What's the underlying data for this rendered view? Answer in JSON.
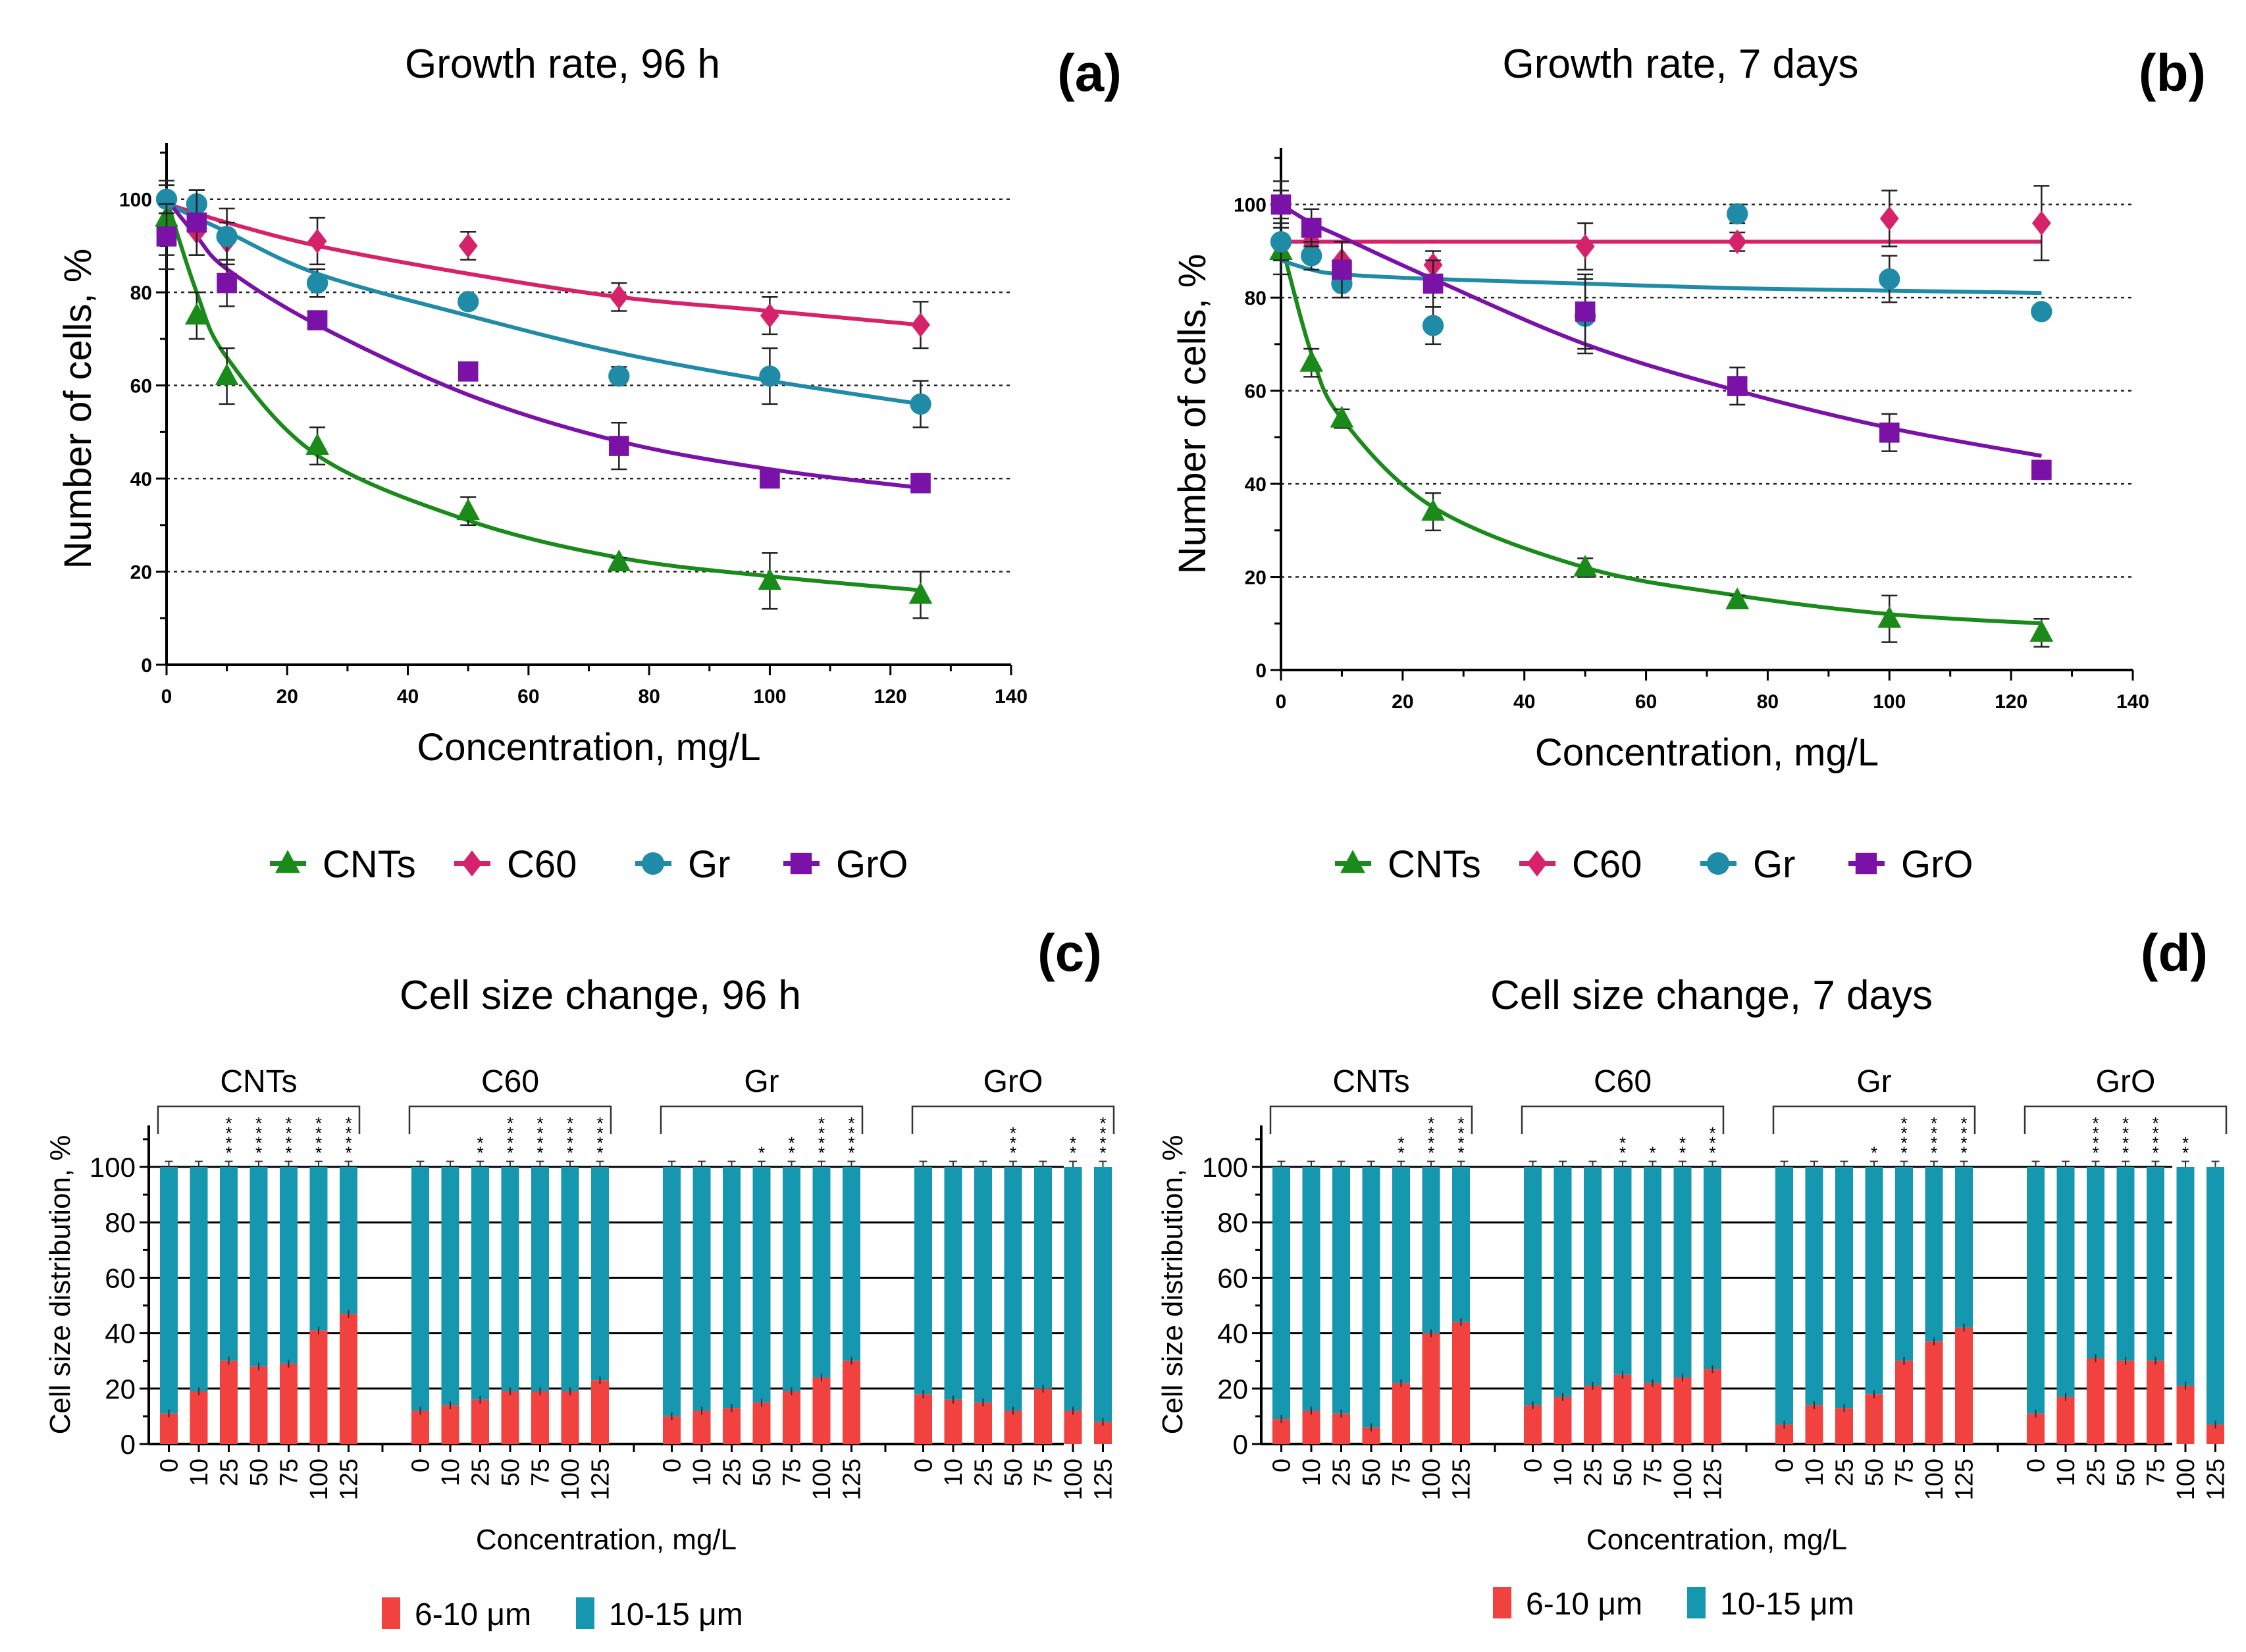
{
  "figure": {
    "panels": [
      "(a)",
      "(b)",
      "(c)",
      "(d)"
    ]
  },
  "colors": {
    "CNTs": "#1a8a1a",
    "C60": "#d6226b",
    "Gr": "#1f8ba6",
    "GrO": "#7a12a8",
    "small": "#f2423f",
    "large": "#1597b0"
  },
  "line_legend": [
    {
      "name": "CNTs",
      "marker": "triangle"
    },
    {
      "name": "C60",
      "marker": "diamond"
    },
    {
      "name": "Gr",
      "marker": "circle"
    },
    {
      "name": "GrO",
      "marker": "square"
    }
  ],
  "bar_legend": [
    {
      "name": "6-10 μm",
      "key": "small"
    },
    {
      "name": "10-15 μm",
      "key": "large"
    }
  ],
  "chart_data": [
    {
      "id": "a",
      "type": "scatter",
      "title": "Growth rate, 96 h",
      "panel_label": "(a)",
      "xlabel": "Concentration, mg/L",
      "ylabel": "Number of cells, %",
      "xlim": [
        0,
        140
      ],
      "ylim": [
        0,
        110
      ],
      "xticks": [
        0,
        20,
        40,
        60,
        80,
        100,
        120,
        140
      ],
      "yticks": [
        0,
        20,
        40,
        60,
        80,
        100
      ],
      "grid_y": [
        20,
        40,
        60,
        80,
        100
      ],
      "x": [
        0,
        5,
        10,
        25,
        50,
        75,
        100,
        125
      ],
      "series": [
        {
          "name": "CNTs",
          "values": [
            96,
            75,
            62,
            47,
            33,
            22,
            18,
            15
          ],
          "errors": [
            8,
            5,
            6,
            4,
            3,
            1,
            6,
            5
          ],
          "fit": [
            100,
            80,
            66,
            45,
            31,
            23,
            19,
            16
          ]
        },
        {
          "name": "C60",
          "values": [
            100,
            93,
            91,
            91,
            90,
            79,
            75,
            73
          ],
          "errors": [
            3,
            5,
            4,
            5,
            3,
            3,
            4,
            5
          ],
          "fit": [
            99,
            97,
            95,
            90,
            84,
            79,
            76,
            73
          ]
        },
        {
          "name": "Gr",
          "values": [
            100,
            99,
            92,
            82,
            78,
            62,
            62,
            56
          ],
          "errors": [
            3,
            3,
            6,
            3,
            1,
            2,
            6,
            5
          ],
          "fit": [
            99,
            96,
            93,
            84,
            75,
            67,
            61,
            56
          ]
        },
        {
          "name": "GrO",
          "values": [
            92,
            95,
            82,
            74,
            63,
            47,
            40,
            39
          ],
          "errors": [
            7,
            7,
            5,
            1,
            1,
            5,
            1,
            2
          ],
          "fit": [
            100,
            92,
            85,
            73,
            58,
            48,
            42,
            38
          ]
        }
      ]
    },
    {
      "id": "b",
      "type": "scatter",
      "title": "Growth rate, 7 days",
      "panel_label": "(b)",
      "xlabel": "Concentration, mg/L",
      "ylabel": "Number of cells, %",
      "xlim": [
        0,
        140
      ],
      "ylim": [
        0,
        110
      ],
      "xticks": [
        0,
        20,
        40,
        60,
        80,
        100,
        120,
        140
      ],
      "yticks": [
        0,
        20,
        40,
        60,
        80,
        100
      ],
      "grid_y": [
        20,
        40,
        60,
        80,
        100
      ],
      "x": [
        0,
        5,
        10,
        25,
        50,
        75,
        100,
        125
      ],
      "series": [
        {
          "name": "CNTs",
          "values": [
            90,
            66,
            54,
            34,
            22,
            15,
            11,
            8
          ],
          "errors": [
            5,
            3,
            2,
            4,
            2,
            1,
            5,
            3
          ],
          "fit": [
            92,
            68,
            54,
            35,
            22,
            16,
            12,
            10
          ]
        },
        {
          "name": "C60",
          "values": [
            100,
            92,
            88,
            87,
            91,
            92,
            97,
            96
          ],
          "errors": [
            5,
            3,
            4,
            3,
            5,
            2,
            6,
            8
          ],
          "fit": [
            92,
            92,
            92,
            92,
            92,
            92,
            92,
            92
          ]
        },
        {
          "name": "Gr",
          "values": [
            92,
            89,
            83,
            74,
            76,
            98,
            84,
            77
          ],
          "errors": [
            4,
            3,
            3,
            4,
            8,
            2,
            5,
            1
          ],
          "fit": [
            88,
            86,
            85,
            84,
            83,
            82,
            81.5,
            81
          ]
        },
        {
          "name": "GrO",
          "values": [
            100,
            95,
            86,
            83,
            77,
            61,
            51,
            43
          ],
          "errors": [
            3,
            4,
            6,
            5,
            8,
            4,
            4,
            2
          ],
          "fit": [
            100,
            96,
            93,
            84,
            70,
            60,
            52,
            46
          ]
        }
      ]
    },
    {
      "id": "c",
      "type": "bar",
      "stacked": true,
      "title": "Cell size change, 96 h",
      "panel_label": "(c)",
      "xlabel": "Concentration, mg/L",
      "ylabel": "Cell size distribution, %",
      "ylim": [
        0,
        115
      ],
      "yticks": [
        0,
        20,
        40,
        60,
        80,
        100
      ],
      "categories": [
        "0",
        "10",
        "25",
        "50",
        "75",
        "100",
        "125"
      ],
      "groups": [
        {
          "name": "CNTs",
          "small": [
            11,
            19,
            30,
            28,
            29,
            41,
            47
          ],
          "stars": [
            "",
            "",
            "****",
            "****",
            "****",
            "****",
            "****"
          ]
        },
        {
          "name": "C60",
          "small": [
            12,
            14,
            16,
            19,
            19,
            19,
            23
          ],
          "stars": [
            "",
            "",
            "**",
            "****",
            "****",
            "****",
            "****"
          ]
        },
        {
          "name": "Gr",
          "small": [
            10,
            12,
            13,
            15,
            19,
            24,
            30
          ],
          "stars": [
            "",
            "",
            "",
            "*",
            "**",
            "****",
            "****"
          ]
        },
        {
          "name": "GrO",
          "small": [
            18,
            16,
            15,
            12,
            20,
            12,
            8
          ],
          "stars": [
            "",
            "",
            "",
            "***",
            "",
            "**",
            "****"
          ]
        }
      ]
    },
    {
      "id": "d",
      "type": "bar",
      "stacked": true,
      "title": "Cell size change, 7 days",
      "panel_label": "(d)",
      "xlabel": "Concentration, mg/L",
      "ylabel": "Cell size distribution, %",
      "ylim": [
        0,
        115
      ],
      "yticks": [
        0,
        20,
        40,
        60,
        80,
        100
      ],
      "categories": [
        "0",
        "10",
        "25",
        "50",
        "75",
        "100",
        "125"
      ],
      "groups": [
        {
          "name": "CNTs",
          "small": [
            9,
            12,
            11,
            6,
            22,
            40,
            44
          ],
          "stars": [
            "",
            "",
            "",
            "",
            "**",
            "****",
            "****"
          ]
        },
        {
          "name": "C60",
          "small": [
            14,
            17,
            21,
            25,
            22,
            24,
            27
          ],
          "stars": [
            "",
            "",
            "",
            "**",
            "*",
            "**",
            "***"
          ]
        },
        {
          "name": "Gr",
          "small": [
            7,
            14,
            13,
            18,
            30,
            37,
            42
          ],
          "stars": [
            "",
            "",
            "",
            "*",
            "****",
            "****",
            "****"
          ]
        },
        {
          "name": "GrO",
          "small": [
            11,
            17,
            31,
            30,
            30,
            21,
            7
          ],
          "stars": [
            "",
            "",
            "****",
            "****",
            "****",
            "**",
            ""
          ]
        }
      ]
    }
  ]
}
